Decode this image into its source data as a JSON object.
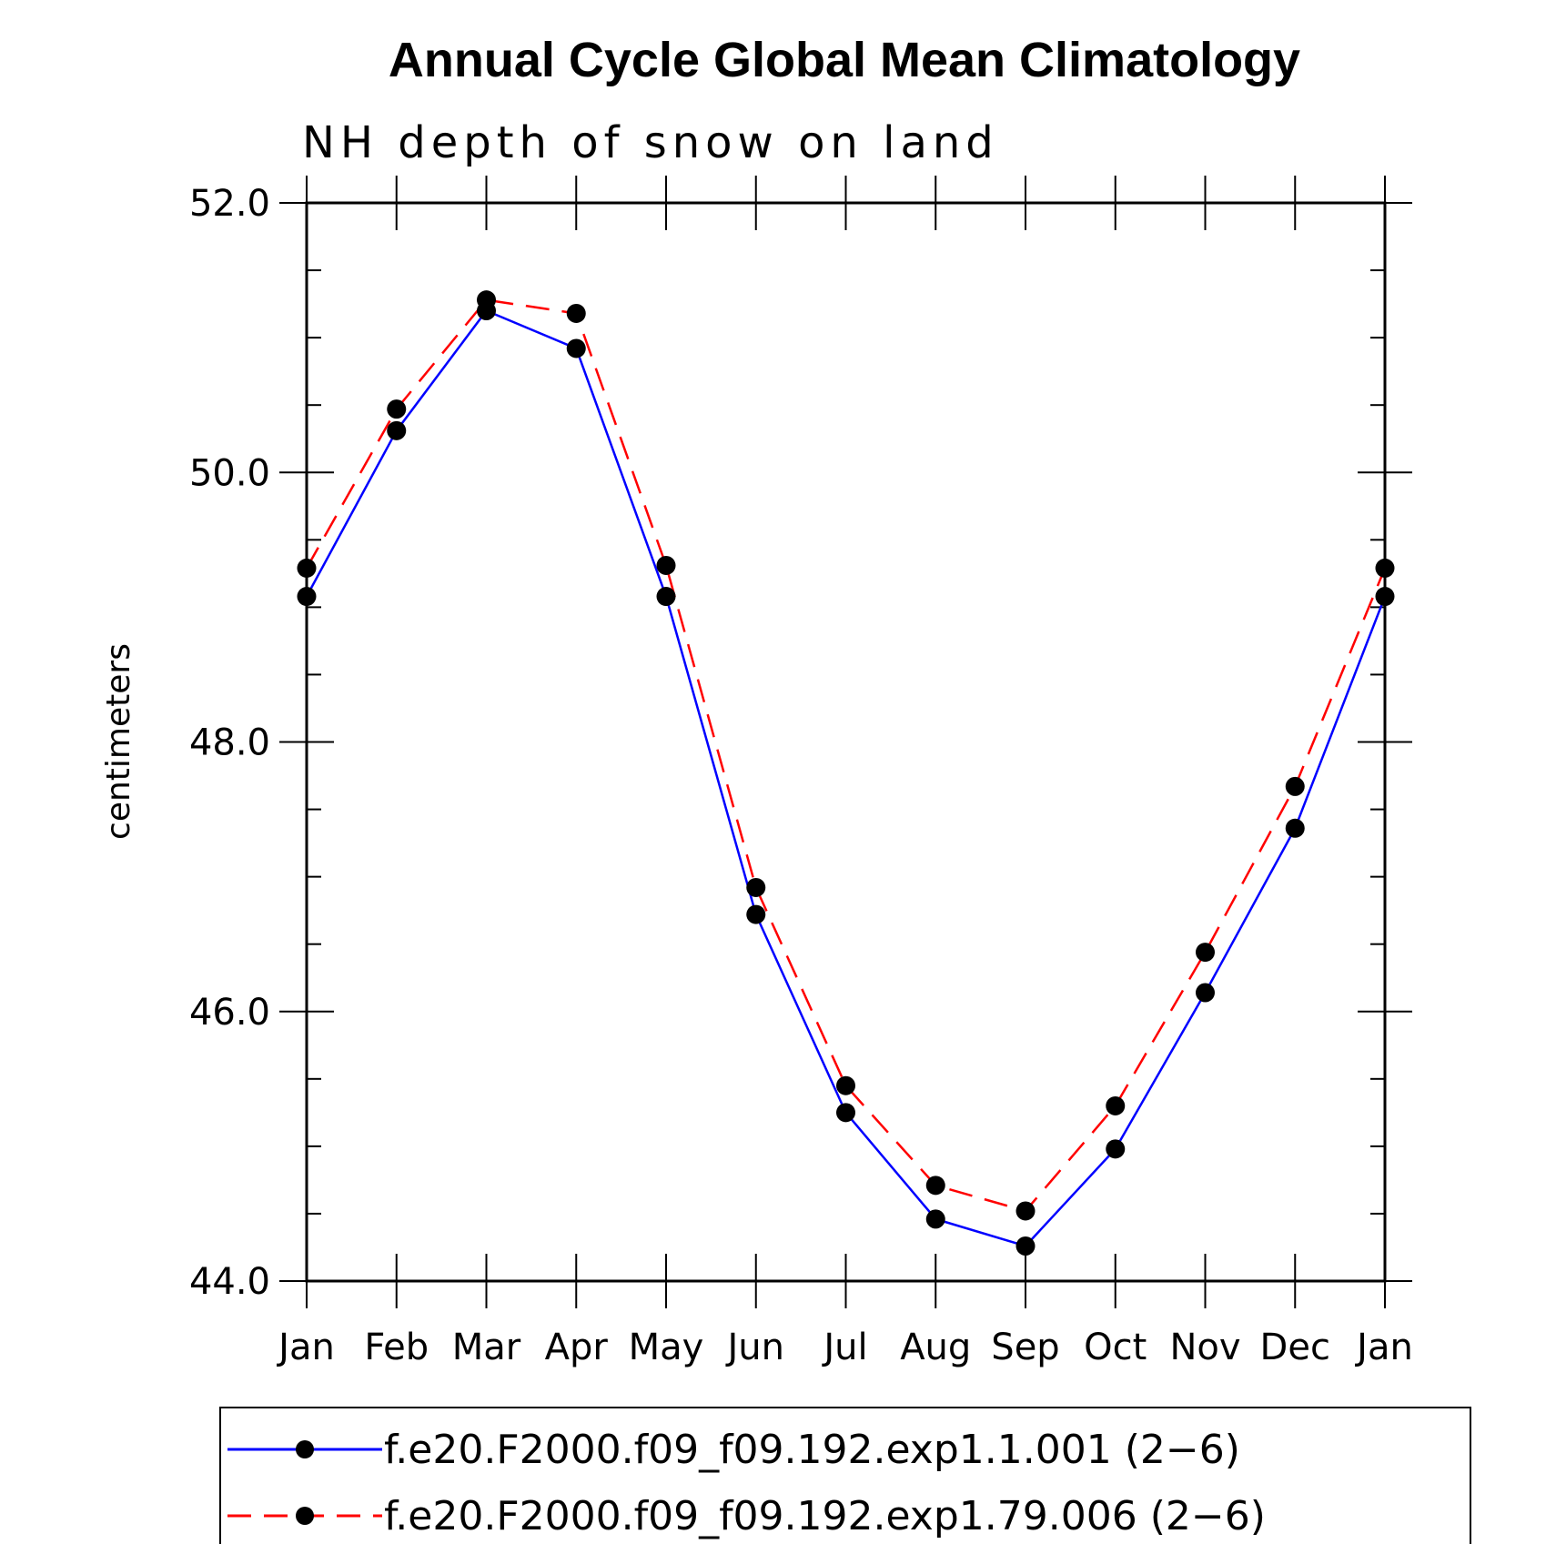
{
  "chart_data": {
    "type": "line",
    "title": "Annual Cycle Global Mean Climatology",
    "subtitle": "NH depth of snow on land",
    "xlabel": "",
    "ylabel": "centimeters",
    "ylim": [
      44.0,
      52.0
    ],
    "y_ticks": [
      "44.0",
      "46.0",
      "48.0",
      "50.0",
      "52.0"
    ],
    "categories": [
      "Jan",
      "Feb",
      "Mar",
      "Apr",
      "May",
      "Jun",
      "Jul",
      "Aug",
      "Sep",
      "Oct",
      "Nov",
      "Dec",
      "Jan"
    ],
    "grid": false,
    "legend_position": "bottom",
    "series": [
      {
        "name": "f.e20.F2000.f09_f09.192.exp1.1.001 (2−6)",
        "color": "#0000ff",
        "dash": "solid",
        "marker": "filled-circle",
        "values": [
          49.08,
          50.31,
          51.2,
          50.92,
          49.08,
          46.72,
          45.25,
          44.46,
          44.26,
          44.98,
          46.14,
          47.36,
          49.08
        ]
      },
      {
        "name": "f.e20.F2000.f09_f09.192.exp1.79.006 (2−6)",
        "color": "#ff0000",
        "dash": "dashed",
        "marker": "filled-circle",
        "values": [
          49.29,
          50.47,
          51.28,
          51.18,
          49.31,
          46.92,
          45.45,
          44.71,
          44.52,
          45.3,
          46.44,
          47.67,
          49.29
        ]
      }
    ]
  }
}
